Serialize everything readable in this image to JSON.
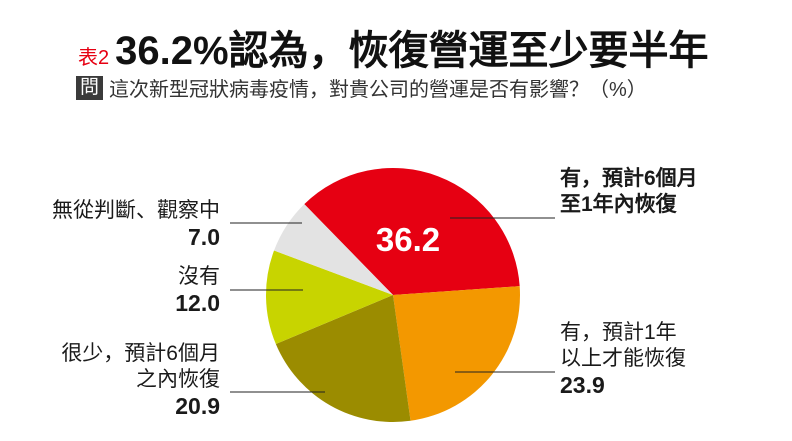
{
  "header": {
    "tag": "表2",
    "title": "36.2%認為，恢復營運至少要半年",
    "question_badge": "問",
    "question": "這次新型冠狀病毒疫情，對貴公司的營運是否有影響？（%）"
  },
  "labels": {
    "red_line1": "有，預計6個月",
    "red_line2": "至1年內恢復",
    "red_value_inside": "36.2",
    "orange_line1": "有，預計1年",
    "orange_line2": "以上才能恢復",
    "orange_value": "23.9",
    "olive_line1": "很少，預計6個月",
    "olive_line2": "之內恢復",
    "olive_value": "20.9",
    "lime_line1": "沒有",
    "lime_value": "12.0",
    "grey_line1": "無從判斷、觀察中",
    "grey_value": "7.0"
  },
  "colors": {
    "red": "#e60012",
    "orange": "#f39800",
    "olive": "#9b8c00",
    "lime": "#c8d400",
    "grey": "#e3e3e3",
    "tag_red": "#e60012"
  },
  "chart_data": {
    "type": "pie",
    "title": "36.2%認為，恢復營運至少要半年",
    "subtitle": "這次新型冠狀病毒疫情，對貴公司的營運是否有影響？（%）",
    "categories": [
      "有，預計6個月至1年內恢復",
      "有，預計1年以上才能恢復",
      "很少，預計6個月之內恢復",
      "沒有",
      "無從判斷、觀察中"
    ],
    "values": [
      36.2,
      23.9,
      20.9,
      12.0,
      7.0
    ],
    "colors": [
      "#e60012",
      "#f39800",
      "#9b8c00",
      "#c8d400",
      "#e3e3e3"
    ],
    "unit": "%",
    "start_angle_deg": -44.3,
    "direction": "clockwise"
  }
}
